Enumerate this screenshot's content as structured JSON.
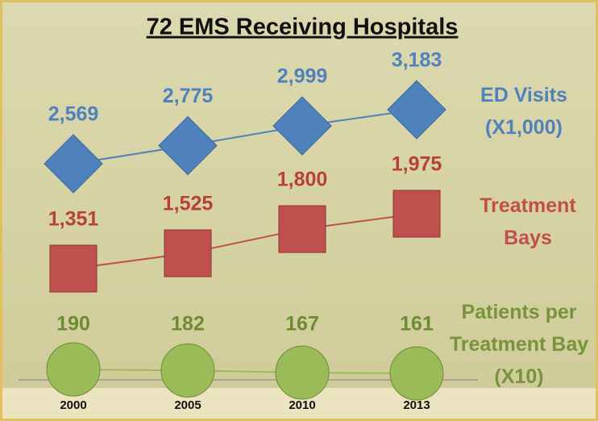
{
  "chart_data": {
    "type": "line",
    "title": "72 EMS Receiving Hospitals",
    "categories": [
      "2000",
      "2005",
      "2010",
      "2013"
    ],
    "series": [
      {
        "name": "ED Visits (X1,000)",
        "color": "#4f81bd",
        "marker": "diamond",
        "values": [
          2569,
          2775,
          2999,
          3183
        ],
        "value_labels": [
          "2,569",
          "2,775",
          "2,999",
          "3,183"
        ]
      },
      {
        "name": "Treatment Bays",
        "color": "#c0504d",
        "marker": "square",
        "values": [
          1351,
          1525,
          1800,
          1975
        ],
        "value_labels": [
          "1,351",
          "1,525",
          "1,800",
          "1,975"
        ]
      },
      {
        "name": "Patients per Treatment Bay (X10)",
        "color": "#9bbb59",
        "marker": "circle",
        "values": [
          190,
          182,
          167,
          161
        ]
      }
    ]
  }
}
